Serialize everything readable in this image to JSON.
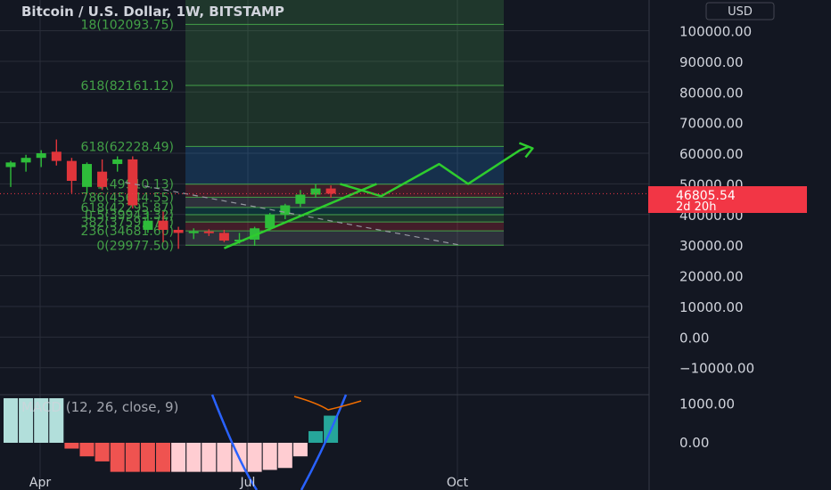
{
  "header": {
    "title": "Bitcoin / U.S. Dollar, 1W, BITSTAMP",
    "currency_button": "USD"
  },
  "price_panel": {
    "last_price": "46805.54",
    "countdown": "2d 20h",
    "colors": {
      "background": "#131722",
      "grid": "#2a2e39",
      "up": "#26a69a",
      "candle_up": "#2ebd3a",
      "candle_down": "#e0353b",
      "fib_line": "#43a047",
      "projection": "#2ecc2e",
      "label_text": "#ffffff",
      "price_badge": "#f23645"
    }
  },
  "chart_data": [
    {
      "type": "candlestick",
      "title": "Bitcoin / U.S. Dollar, 1W, BITSTAMP",
      "y_axis": {
        "ticks": [
          100000,
          90000,
          80000,
          70000,
          60000,
          50000,
          40000,
          30000,
          20000,
          10000,
          0,
          -10000
        ],
        "tick_labels": [
          "100000.00",
          "90000.00",
          "80000.00",
          "70000.00",
          "60000.00",
          "50000.00",
          "40000.00",
          "30000.00",
          "20000.00",
          "10000.00",
          "0.00",
          "−10000.00"
        ],
        "range": [
          -12000,
          108000
        ]
      },
      "x_axis": {
        "tick_labels": [
          "Apr",
          "Jul",
          "Oct"
        ]
      },
      "grid": true,
      "candles": [
        {
          "o": 55500,
          "h": 57500,
          "l": 49000,
          "c": 57000
        },
        {
          "o": 57000,
          "h": 59500,
          "l": 54000,
          "c": 58500
        },
        {
          "o": 58500,
          "h": 61000,
          "l": 55500,
          "c": 60000
        },
        {
          "o": 60500,
          "h": 64500,
          "l": 56000,
          "c": 57500
        },
        {
          "o": 57500,
          "h": 58500,
          "l": 47000,
          "c": 51000
        },
        {
          "o": 49000,
          "h": 57000,
          "l": 47000,
          "c": 56500
        },
        {
          "o": 54000,
          "h": 58000,
          "l": 48000,
          "c": 49000
        },
        {
          "o": 56500,
          "h": 59000,
          "l": 54000,
          "c": 58000
        },
        {
          "o": 58000,
          "h": 59000,
          "l": 42000,
          "c": 43000
        },
        {
          "o": 35000,
          "h": 41000,
          "l": 34000,
          "c": 38000
        },
        {
          "o": 38000,
          "h": 41000,
          "l": 31000,
          "c": 35000
        },
        {
          "o": 35000,
          "h": 36000,
          "l": 28800,
          "c": 34000
        },
        {
          "o": 34000,
          "h": 35500,
          "l": 32000,
          "c": 34500
        },
        {
          "o": 34500,
          "h": 35200,
          "l": 33000,
          "c": 34000
        },
        {
          "o": 34000,
          "h": 35000,
          "l": 31000,
          "c": 31500
        },
        {
          "o": 31500,
          "h": 34000,
          "l": 30500,
          "c": 31800
        },
        {
          "o": 31800,
          "h": 36000,
          "l": 29800,
          "c": 35500
        },
        {
          "o": 35500,
          "h": 40500,
          "l": 34800,
          "c": 40000
        },
        {
          "o": 40000,
          "h": 43500,
          "l": 38500,
          "c": 43000
        },
        {
          "o": 43500,
          "h": 48000,
          "l": 42500,
          "c": 46500
        },
        {
          "o": 46500,
          "h": 50000,
          "l": 45500,
          "c": 48500
        },
        {
          "o": 48500,
          "h": 49500,
          "l": 45500,
          "c": 46805.54
        }
      ],
      "fib_levels": [
        {
          "label": "0(29977.50)",
          "value": 29977.5
        },
        {
          "label": "236(34681.60)",
          "value": 34681.6
        },
        {
          "label": "382(37591.77)",
          "value": 37591.77
        },
        {
          "label": "0.5(39943.32)",
          "value": 39943.32
        },
        {
          "label": "618(42295.87)",
          "value": 42295.87
        },
        {
          "label": "786(45644.55)",
          "value": 45644.55
        },
        {
          "label": "1(49910.13)",
          "value": 49910.13
        },
        {
          "label": "618(62228.49)",
          "value": 62228.49
        },
        {
          "label": "618(82161.12)",
          "value": 82161.12
        },
        {
          "label": "18(102093.75)",
          "value": 102093.75
        }
      ],
      "trend_line": [
        {
          "x": 14,
          "y": 29000
        },
        {
          "x": 24,
          "y": 50000
        }
      ],
      "dashed_line": [
        {
          "x": 7.5,
          "y": 50500
        },
        {
          "x": 29.5,
          "y": 30000
        }
      ],
      "projection_path": [
        {
          "x": 21.6,
          "y": 50000
        },
        {
          "x": 24.3,
          "y": 46000
        },
        {
          "x": 28.1,
          "y": 56500
        },
        {
          "x": 30.0,
          "y": 50000
        },
        {
          "x": 33.4,
          "y": 61000
        },
        {
          "x": 34.0,
          "y": 62200
        }
      ]
    },
    {
      "type": "bar",
      "title": "MACD (12, 26, close, 9)",
      "y_axis": {
        "ticks": [
          1000,
          0
        ],
        "tick_labels": [
          "1000.00",
          "0.00"
        ],
        "range": [
          -750,
          1000
        ]
      },
      "histogram": [
        {
          "v": 1150,
          "color": "#b2dfdb"
        },
        {
          "v": 1150,
          "color": "#b2dfdb"
        },
        {
          "v": 1150,
          "color": "#b2dfdb"
        },
        {
          "v": 1150,
          "color": "#b2dfdb"
        },
        {
          "v": -150,
          "color": "#ef5350"
        },
        {
          "v": -350,
          "color": "#ef5350"
        },
        {
          "v": -480,
          "color": "#ef5350"
        },
        {
          "v": -750,
          "color": "#ef5350"
        },
        {
          "v": -750,
          "color": "#ef5350"
        },
        {
          "v": -750,
          "color": "#ef5350"
        },
        {
          "v": -750,
          "color": "#ef5350"
        },
        {
          "v": -750,
          "color": "#ffcdd2"
        },
        {
          "v": -750,
          "color": "#ffcdd2"
        },
        {
          "v": -750,
          "color": "#ffcdd2"
        },
        {
          "v": -750,
          "color": "#ffcdd2"
        },
        {
          "v": -750,
          "color": "#ffcdd2"
        },
        {
          "v": -750,
          "color": "#ffcdd2"
        },
        {
          "v": -700,
          "color": "#ffcdd2"
        },
        {
          "v": -650,
          "color": "#ffcdd2"
        },
        {
          "v": -350,
          "color": "#ffcdd2"
        },
        {
          "v": 300,
          "color": "#26a69a"
        },
        {
          "v": 700,
          "color": "#26a69a"
        }
      ]
    }
  ]
}
